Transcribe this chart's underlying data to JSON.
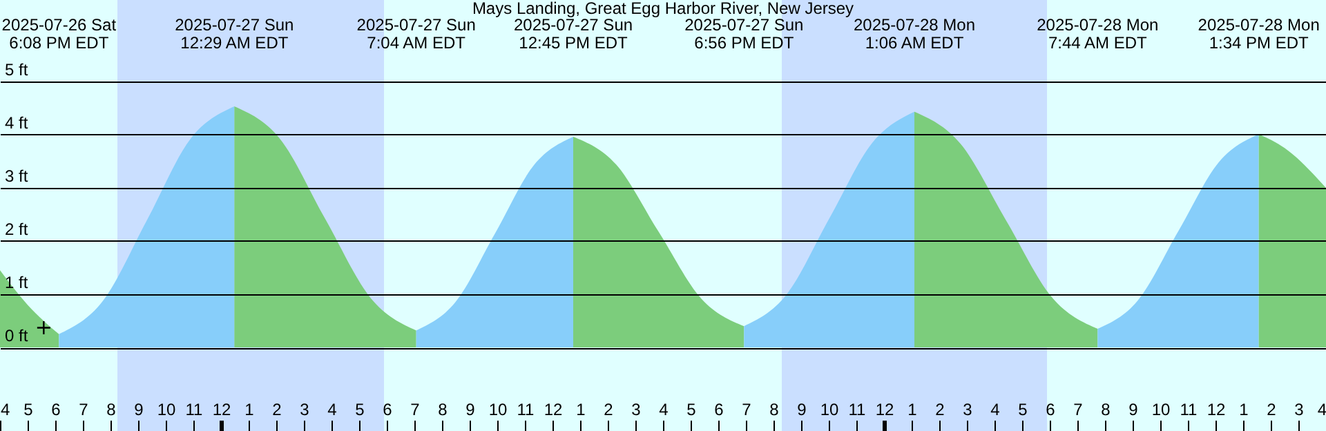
{
  "chart_data": {
    "type": "area",
    "title": "Mays Landing, Great Egg Harbor River, New Jersey",
    "series": [
      {
        "color": "#7ccd7c",
        "x": [
          "2025-07-26T16:00",
          "2025-07-26T17:00",
          "2025-07-26T18:08"
        ],
        "values": [
          1.45,
          0.8,
          0.25
        ]
      },
      {
        "color": "#87cefa",
        "x": [
          "2025-07-26T18:08",
          "2025-07-26T19:43",
          "2025-07-26T21:19",
          "2025-07-26T22:53",
          "2025-07-27T00:29"
        ],
        "values": [
          0.25,
          0.87,
          2.39,
          3.91,
          4.53
        ]
      },
      {
        "color": "#7ccd7c",
        "x": [
          "2025-07-27T00:29",
          "2025-07-27T02:08",
          "2025-07-27T03:46",
          "2025-07-27T05:25",
          "2025-07-27T07:04"
        ],
        "values": [
          4.53,
          3.92,
          2.42,
          0.93,
          0.32
        ]
      },
      {
        "color": "#87cefa",
        "x": [
          "2025-07-27T07:04",
          "2025-07-27T08:29",
          "2025-07-27T09:55",
          "2025-07-27T11:20",
          "2025-07-27T12:45"
        ],
        "values": [
          0.32,
          0.85,
          2.14,
          3.43,
          3.96
        ]
      },
      {
        "color": "#7ccd7c",
        "x": [
          "2025-07-27T12:45",
          "2025-07-27T14:18",
          "2025-07-27T15:50",
          "2025-07-27T17:23",
          "2025-07-27T18:56"
        ],
        "values": [
          3.96,
          3.44,
          2.18,
          0.92,
          0.4
        ]
      },
      {
        "color": "#87cefa",
        "x": [
          "2025-07-27T18:56",
          "2025-07-27T20:28",
          "2025-07-27T22:01",
          "2025-07-27T23:34",
          "2025-07-28T01:06"
        ],
        "values": [
          0.4,
          0.99,
          2.42,
          3.84,
          4.43
        ]
      },
      {
        "color": "#7ccd7c",
        "x": [
          "2025-07-28T01:06",
          "2025-07-28T02:46",
          "2025-07-28T04:25",
          "2025-07-28T06:04",
          "2025-07-28T07:44"
        ],
        "values": [
          4.43,
          3.83,
          2.39,
          0.95,
          0.35
        ]
      },
      {
        "color": "#87cefa",
        "x": [
          "2025-07-28T07:44",
          "2025-07-28T09:11",
          "2025-07-28T10:39",
          "2025-07-28T12:07",
          "2025-07-28T13:34"
        ],
        "values": [
          0.35,
          0.88,
          2.18,
          3.48,
          4.01
        ]
      },
      {
        "color": "#7ccd7c",
        "x": [
          "2025-07-28T13:34",
          "2025-07-28T14:30",
          "2025-07-28T16:00"
        ],
        "values": [
          4.01,
          3.75,
          3.0
        ]
      },
      {
        "type": "scatter",
        "marker": "cross",
        "color": "#000000",
        "x": [
          "2025-07-26T17:35"
        ],
        "values": [
          0.37
        ]
      }
    ],
    "xlim": [
      "2025-07-26T16:00",
      "2025-07-28T16:00"
    ],
    "xticks": [
      {
        "value": "2025-07-26T16:00",
        "label": "4"
      },
      {
        "value": "2025-07-26T17:00",
        "label": "5"
      },
      {
        "value": "2025-07-26T18:00",
        "label": "6"
      },
      {
        "value": "2025-07-26T19:00",
        "label": "7"
      },
      {
        "value": "2025-07-26T20:00",
        "label": "8"
      },
      {
        "value": "2025-07-26T21:00",
        "label": "9"
      },
      {
        "value": "2025-07-26T22:00",
        "label": "10"
      },
      {
        "value": "2025-07-26T23:00",
        "label": "11"
      },
      {
        "value": "2025-07-27T00:00",
        "label": "12"
      },
      {
        "value": "2025-07-27T01:00",
        "label": "1"
      },
      {
        "value": "2025-07-27T02:00",
        "label": "2"
      },
      {
        "value": "2025-07-27T03:00",
        "label": "3"
      },
      {
        "value": "2025-07-27T04:00",
        "label": "4"
      },
      {
        "value": "2025-07-27T05:00",
        "label": "5"
      },
      {
        "value": "2025-07-27T06:00",
        "label": "6"
      },
      {
        "value": "2025-07-27T07:00",
        "label": "7"
      },
      {
        "value": "2025-07-27T08:00",
        "label": "8"
      },
      {
        "value": "2025-07-27T09:00",
        "label": "9"
      },
      {
        "value": "2025-07-27T10:00",
        "label": "10"
      },
      {
        "value": "2025-07-27T11:00",
        "label": "11"
      },
      {
        "value": "2025-07-27T12:00",
        "label": "12"
      },
      {
        "value": "2025-07-27T13:00",
        "label": "1"
      },
      {
        "value": "2025-07-27T14:00",
        "label": "2"
      },
      {
        "value": "2025-07-27T15:00",
        "label": "3"
      },
      {
        "value": "2025-07-27T16:00",
        "label": "4"
      },
      {
        "value": "2025-07-27T17:00",
        "label": "5"
      },
      {
        "value": "2025-07-27T18:00",
        "label": "6"
      },
      {
        "value": "2025-07-27T19:00",
        "label": "7"
      },
      {
        "value": "2025-07-27T20:00",
        "label": "8"
      },
      {
        "value": "2025-07-27T21:00",
        "label": "9"
      },
      {
        "value": "2025-07-27T22:00",
        "label": "10"
      },
      {
        "value": "2025-07-27T23:00",
        "label": "11"
      },
      {
        "value": "2025-07-28T00:00",
        "label": "12"
      },
      {
        "value": "2025-07-28T01:00",
        "label": "1"
      },
      {
        "value": "2025-07-28T02:00",
        "label": "2"
      },
      {
        "value": "2025-07-28T03:00",
        "label": "3"
      },
      {
        "value": "2025-07-28T04:00",
        "label": "4"
      },
      {
        "value": "2025-07-28T05:00",
        "label": "5"
      },
      {
        "value": "2025-07-28T06:00",
        "label": "6"
      },
      {
        "value": "2025-07-28T07:00",
        "label": "7"
      },
      {
        "value": "2025-07-28T08:00",
        "label": "8"
      },
      {
        "value": "2025-07-28T09:00",
        "label": "9"
      },
      {
        "value": "2025-07-28T10:00",
        "label": "10"
      },
      {
        "value": "2025-07-28T11:00",
        "label": "11"
      },
      {
        "value": "2025-07-28T12:00",
        "label": "12"
      },
      {
        "value": "2025-07-28T13:00",
        "label": "1"
      },
      {
        "value": "2025-07-28T14:00",
        "label": "2"
      },
      {
        "value": "2025-07-28T15:00",
        "label": "3"
      },
      {
        "value": "2025-07-28T16:00",
        "label": "4"
      }
    ],
    "ylim": [
      -1.57,
      6.53
    ],
    "yticks": [
      {
        "value": 0,
        "label": "0 ft"
      },
      {
        "value": 1,
        "label": "1 ft"
      },
      {
        "value": 2,
        "label": "2 ft"
      },
      {
        "value": 3,
        "label": "3 ft"
      },
      {
        "value": 4,
        "label": "4 ft"
      },
      {
        "value": 5,
        "label": "5 ft"
      }
    ],
    "grid": "y",
    "bands": [
      {
        "axis": "x",
        "from": "2025-07-26T20:15",
        "to": "2025-07-27T05:54",
        "color": "#cadfff"
      },
      {
        "axis": "x",
        "from": "2025-07-27T20:18",
        "to": "2025-07-28T05:54",
        "color": "#cadfff"
      }
    ],
    "annotations": [
      "2025-07-26 Sat\n6:08 PM EDT",
      "2025-07-27 Sun\n12:29 AM EDT",
      "2025-07-27 Sun\n7:04 AM EDT",
      "2025-07-27 Sun\n12:45 PM EDT",
      "2025-07-27 Sun\n6:56 PM EDT",
      "2025-07-28 Mon\n1:06 AM EDT",
      "2025-07-28 Mon\n7:44 AM EDT",
      "2025-07-28 Mon\n1:34 PM EDT"
    ]
  }
}
